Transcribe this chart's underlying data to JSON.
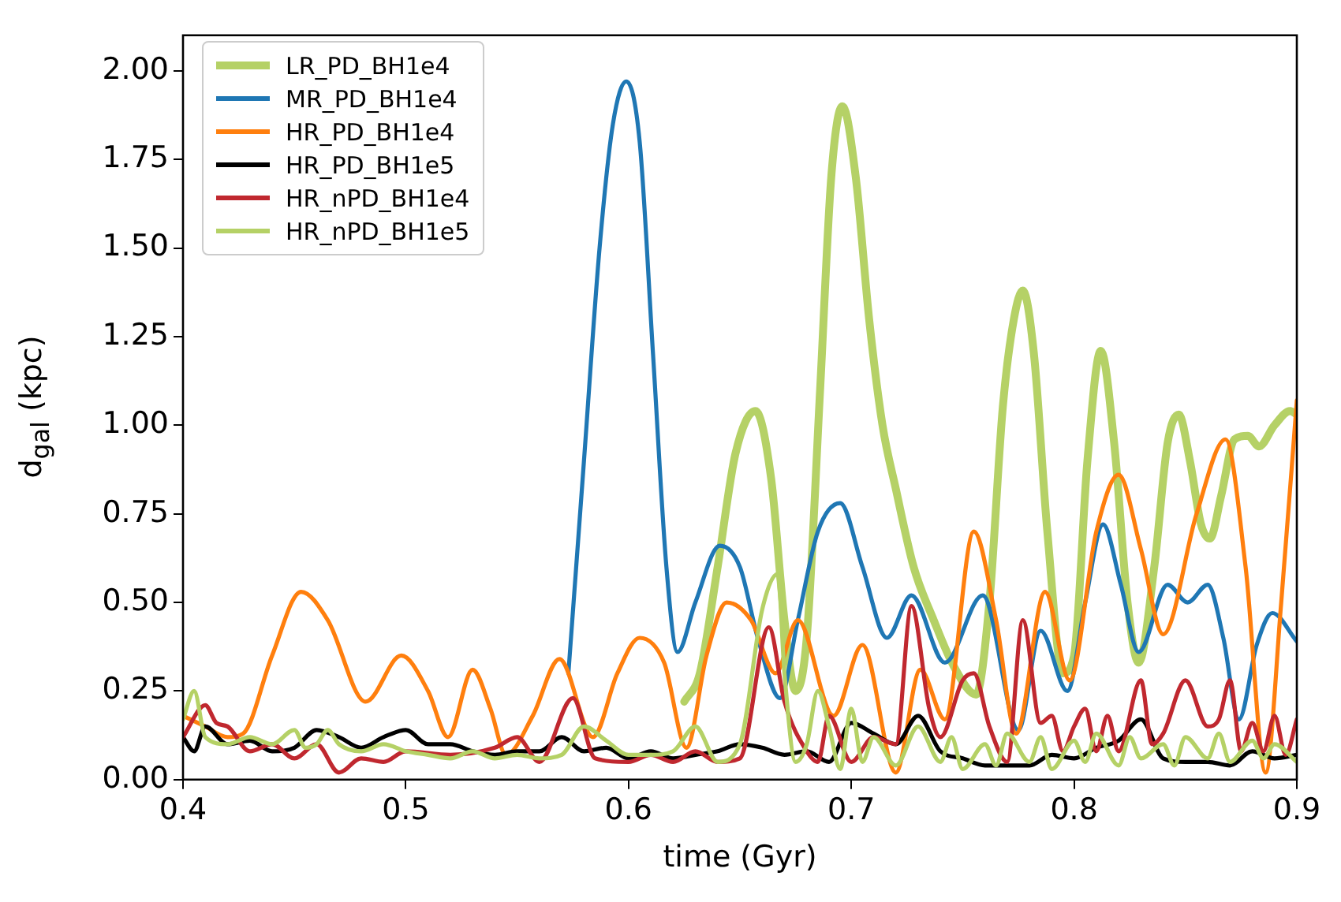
{
  "chart_data": {
    "type": "line",
    "xlabel": "time (Gyr)",
    "ylabel": "d$_{gal}$ (kpc)",
    "xlim": [
      0.4,
      0.9
    ],
    "xticks": [
      0.4,
      0.5,
      0.6,
      0.7,
      0.8,
      0.9
    ],
    "ylim": [
      0,
      2.1
    ],
    "yticks": [
      {
        "value": 0,
        "label": "0.00"
      },
      {
        "value": 0.25,
        "label": "0.25"
      },
      {
        "value": 0.5,
        "label": "0.50"
      },
      {
        "value": 0.75,
        "label": "0.75"
      },
      {
        "value": 1,
        "label": "1.00"
      },
      {
        "value": 1.25,
        "label": "1.25"
      },
      {
        "value": 1.5,
        "label": "1.50"
      },
      {
        "value": 1.75,
        "label": "1.75"
      },
      {
        "value": 2,
        "label": "2.00"
      }
    ],
    "grid": false,
    "legend": "top left",
    "marker": "none",
    "line_style": "solid",
    "series": [
      {
        "name": "LR_PD_BH1e4",
        "color": "#b5d166",
        "x": [
          0.625,
          0.632,
          0.64,
          0.648,
          0.657,
          0.664,
          0.67,
          0.675,
          0.68,
          0.686,
          0.691,
          0.696,
          0.702,
          0.708,
          0.714,
          0.72,
          0.728,
          0.737,
          0.746,
          0.756,
          0.762,
          0.768,
          0.773,
          0.777,
          0.782,
          0.788,
          0.795,
          0.8,
          0.806,
          0.812,
          0.818,
          0.824,
          0.829,
          0.836,
          0.842,
          0.847,
          0.852,
          0.857,
          0.861,
          0.866,
          0.872,
          0.878,
          0.883,
          0.89,
          0.897,
          0.9
        ],
        "values": [
          0.22,
          0.3,
          0.6,
          0.92,
          1.04,
          0.85,
          0.45,
          0.25,
          0.4,
          1.1,
          1.7,
          1.9,
          1.7,
          1.3,
          1.0,
          0.82,
          0.6,
          0.45,
          0.32,
          0.24,
          0.5,
          1.05,
          1.3,
          1.38,
          1.2,
          0.7,
          0.3,
          0.35,
          0.9,
          1.21,
          0.95,
          0.5,
          0.33,
          0.6,
          0.95,
          1.03,
          0.9,
          0.72,
          0.68,
          0.8,
          0.96,
          0.97,
          0.94,
          1.0,
          1.04,
          1.03
        ]
      },
      {
        "name": "MR_PD_BH1e4",
        "color": "#1f77b4",
        "x": [
          0.573,
          0.58,
          0.587,
          0.593,
          0.599,
          0.605,
          0.611,
          0.617,
          0.622,
          0.63,
          0.641,
          0.65,
          0.658,
          0.668,
          0.676,
          0.685,
          0.695,
          0.705,
          0.716,
          0.727,
          0.742,
          0.759,
          0.775,
          0.785,
          0.797,
          0.805,
          0.813,
          0.821,
          0.829,
          0.842,
          0.851,
          0.86,
          0.867,
          0.874,
          0.882,
          0.889,
          0.9
        ],
        "values": [
          0.3,
          0.9,
          1.5,
          1.85,
          1.97,
          1.8,
          1.2,
          0.6,
          0.36,
          0.5,
          0.66,
          0.6,
          0.4,
          0.23,
          0.45,
          0.7,
          0.78,
          0.6,
          0.4,
          0.52,
          0.33,
          0.52,
          0.14,
          0.42,
          0.25,
          0.5,
          0.72,
          0.55,
          0.36,
          0.55,
          0.5,
          0.55,
          0.4,
          0.17,
          0.38,
          0.47,
          0.39
        ]
      },
      {
        "name": "HR_PD_BH1e4",
        "color": "#ff7f0e",
        "x": [
          0.4,
          0.41,
          0.42,
          0.427,
          0.44,
          0.453,
          0.465,
          0.482,
          0.498,
          0.51,
          0.519,
          0.53,
          0.538,
          0.545,
          0.557,
          0.569,
          0.584,
          0.595,
          0.605,
          0.616,
          0.626,
          0.635,
          0.644,
          0.655,
          0.666,
          0.676,
          0.692,
          0.705,
          0.72,
          0.731,
          0.742,
          0.755,
          0.765,
          0.774,
          0.787,
          0.798,
          0.81,
          0.82,
          0.83,
          0.84,
          0.855,
          0.868,
          0.877,
          0.886,
          0.893,
          0.9
        ],
        "values": [
          0.18,
          0.15,
          0.12,
          0.13,
          0.35,
          0.53,
          0.45,
          0.22,
          0.35,
          0.25,
          0.12,
          0.31,
          0.2,
          0.07,
          0.18,
          0.34,
          0.12,
          0.3,
          0.4,
          0.33,
          0.09,
          0.35,
          0.5,
          0.45,
          0.3,
          0.45,
          0.18,
          0.38,
          0.02,
          0.31,
          0.17,
          0.7,
          0.45,
          0.13,
          0.53,
          0.28,
          0.7,
          0.86,
          0.65,
          0.41,
          0.75,
          0.96,
          0.6,
          0.02,
          0.5,
          1.07
        ]
      },
      {
        "name": "HR_PD_BH1e5",
        "color": "#000000",
        "x": [
          0.4,
          0.405,
          0.41,
          0.42,
          0.43,
          0.44,
          0.45,
          0.46,
          0.47,
          0.48,
          0.49,
          0.5,
          0.51,
          0.52,
          0.53,
          0.54,
          0.55,
          0.56,
          0.57,
          0.58,
          0.59,
          0.6,
          0.61,
          0.62,
          0.63,
          0.64,
          0.65,
          0.66,
          0.67,
          0.68,
          0.69,
          0.7,
          0.71,
          0.72,
          0.73,
          0.74,
          0.75,
          0.76,
          0.77,
          0.78,
          0.79,
          0.8,
          0.81,
          0.82,
          0.83,
          0.84,
          0.85,
          0.86,
          0.87,
          0.88,
          0.89,
          0.9
        ],
        "values": [
          0.12,
          0.08,
          0.15,
          0.1,
          0.11,
          0.08,
          0.09,
          0.14,
          0.12,
          0.09,
          0.12,
          0.14,
          0.1,
          0.1,
          0.08,
          0.07,
          0.08,
          0.08,
          0.12,
          0.08,
          0.09,
          0.06,
          0.08,
          0.06,
          0.07,
          0.08,
          0.1,
          0.09,
          0.07,
          0.08,
          0.05,
          0.16,
          0.13,
          0.1,
          0.18,
          0.08,
          0.06,
          0.04,
          0.04,
          0.04,
          0.07,
          0.06,
          0.09,
          0.11,
          0.17,
          0.06,
          0.05,
          0.05,
          0.04,
          0.08,
          0.06,
          0.07
        ]
      },
      {
        "name": "HR_nPD_BH1e4",
        "color": "#c0282f",
        "x": [
          0.4,
          0.41,
          0.415,
          0.42,
          0.43,
          0.44,
          0.45,
          0.46,
          0.47,
          0.48,
          0.49,
          0.5,
          0.52,
          0.54,
          0.55,
          0.56,
          0.575,
          0.585,
          0.6,
          0.61,
          0.62,
          0.63,
          0.64,
          0.65,
          0.663,
          0.67,
          0.68,
          0.685,
          0.69,
          0.7,
          0.71,
          0.72,
          0.727,
          0.735,
          0.74,
          0.75,
          0.755,
          0.762,
          0.77,
          0.777,
          0.785,
          0.79,
          0.795,
          0.8,
          0.805,
          0.81,
          0.815,
          0.82,
          0.83,
          0.835,
          0.84,
          0.85,
          0.86,
          0.865,
          0.87,
          0.875,
          0.88,
          0.885,
          0.89,
          0.895,
          0.9
        ],
        "values": [
          0.12,
          0.21,
          0.16,
          0.15,
          0.08,
          0.1,
          0.06,
          0.1,
          0.02,
          0.06,
          0.05,
          0.08,
          0.07,
          0.09,
          0.12,
          0.05,
          0.23,
          0.06,
          0.05,
          0.07,
          0.05,
          0.08,
          0.05,
          0.06,
          0.43,
          0.22,
          0.08,
          0.05,
          0.18,
          0.05,
          0.12,
          0.1,
          0.49,
          0.2,
          0.12,
          0.28,
          0.3,
          0.15,
          0.05,
          0.45,
          0.16,
          0.18,
          0.08,
          0.15,
          0.2,
          0.08,
          0.18,
          0.08,
          0.28,
          0.1,
          0.13,
          0.28,
          0.15,
          0.17,
          0.28,
          0.08,
          0.16,
          0.08,
          0.18,
          0.07,
          0.17
        ]
      },
      {
        "name": "HR_nPD_BH1e5",
        "color": "#b5d166",
        "x": [
          0.4,
          0.405,
          0.41,
          0.42,
          0.43,
          0.44,
          0.45,
          0.455,
          0.46,
          0.465,
          0.47,
          0.48,
          0.49,
          0.5,
          0.51,
          0.52,
          0.53,
          0.54,
          0.55,
          0.56,
          0.57,
          0.58,
          0.59,
          0.6,
          0.61,
          0.62,
          0.63,
          0.64,
          0.65,
          0.66,
          0.667,
          0.67,
          0.675,
          0.68,
          0.685,
          0.69,
          0.695,
          0.7,
          0.705,
          0.71,
          0.72,
          0.73,
          0.74,
          0.745,
          0.75,
          0.76,
          0.765,
          0.77,
          0.78,
          0.785,
          0.79,
          0.8,
          0.805,
          0.81,
          0.82,
          0.825,
          0.83,
          0.84,
          0.845,
          0.85,
          0.86,
          0.865,
          0.87,
          0.88,
          0.885,
          0.89,
          0.9
        ],
        "values": [
          0.17,
          0.25,
          0.12,
          0.1,
          0.12,
          0.1,
          0.14,
          0.09,
          0.1,
          0.14,
          0.1,
          0.08,
          0.1,
          0.08,
          0.07,
          0.06,
          0.08,
          0.06,
          0.07,
          0.06,
          0.07,
          0.15,
          0.11,
          0.07,
          0.07,
          0.08,
          0.15,
          0.05,
          0.1,
          0.48,
          0.58,
          0.3,
          0.05,
          0.1,
          0.25,
          0.15,
          0.03,
          0.2,
          0.05,
          0.12,
          0.04,
          0.15,
          0.05,
          0.12,
          0.03,
          0.1,
          0.04,
          0.13,
          0.05,
          0.12,
          0.03,
          0.11,
          0.05,
          0.13,
          0.04,
          0.12,
          0.06,
          0.1,
          0.04,
          0.12,
          0.06,
          0.13,
          0.05,
          0.11,
          0.06,
          0.1,
          0.05
        ]
      }
    ]
  }
}
